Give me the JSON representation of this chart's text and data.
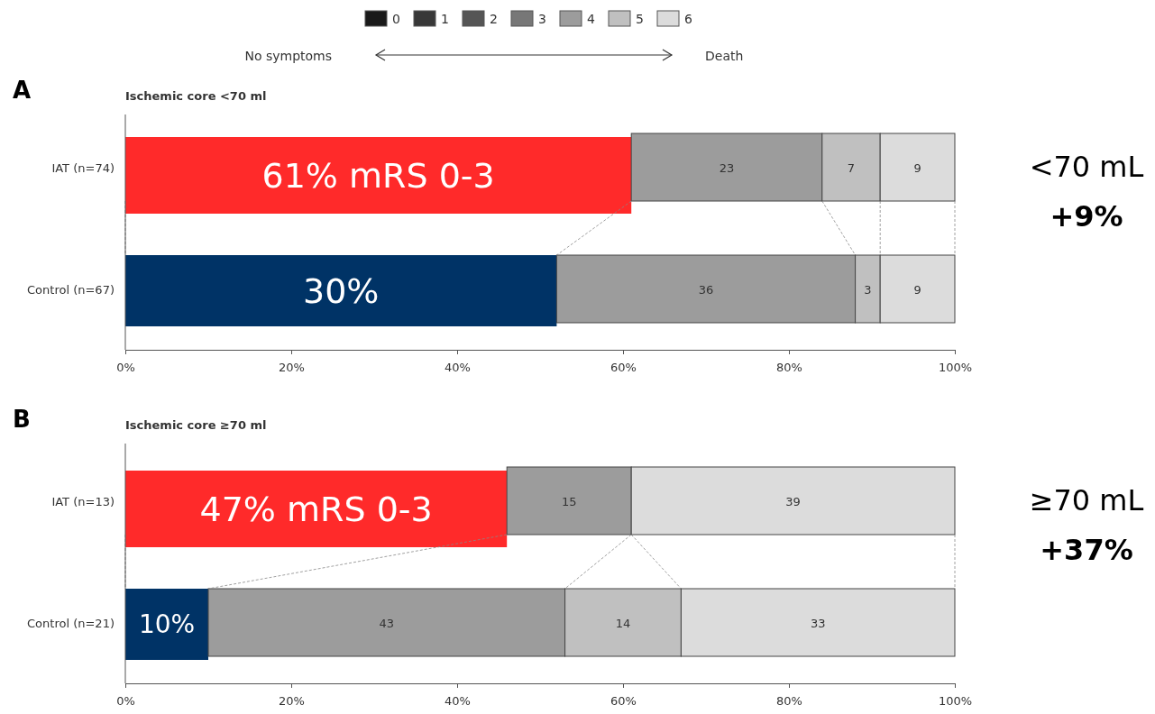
{
  "chart_data": [
    {
      "type": "bar",
      "orientation": "horizontal",
      "stacked": true,
      "title": "Ischemic core <70 ml",
      "categories": [
        "IAT (n=74)",
        "Control (n=67)"
      ],
      "xlim": [
        0,
        100
      ],
      "xticks": [
        {
          "value": 0,
          "label": "0%"
        },
        {
          "value": 20,
          "label": "20%"
        },
        {
          "value": 40,
          "label": "40%"
        },
        {
          "value": 60,
          "label": "60%"
        },
        {
          "value": 80,
          "label": "80%"
        },
        {
          "value": 100,
          "label": "100%"
        }
      ],
      "legend": "top",
      "series": [
        {
          "colors": [
            "#ff2a2a",
            "#003366"
          ],
          "values": [
            61,
            52
          ]
        },
        {
          "name": "0",
          "color": "#1a1a1a",
          "values": [
            null,
            null
          ]
        },
        {
          "name": "1",
          "color": "#383838",
          "values": [
            null,
            null
          ]
        },
        {
          "name": "2",
          "color": "#555555",
          "values": [
            null,
            null
          ]
        },
        {
          "name": "3",
          "color": "#777777",
          "values": [
            null,
            null
          ]
        },
        {
          "name": "4",
          "color": "#9c9c9c",
          "values": [
            23,
            36
          ],
          "value_labels": [
            "23",
            "36"
          ]
        },
        {
          "name": "5",
          "color": "#c0c0c0",
          "values": [
            7,
            3
          ],
          "value_labels": [
            "7",
            "3"
          ]
        },
        {
          "name": "6",
          "color": "#dcdcdc",
          "values": [
            9,
            9
          ],
          "value_labels": [
            "9",
            "9"
          ]
        }
      ],
      "annotations": [
        "A",
        "No symptoms",
        "Death",
        "61% mRS 0-3",
        "30%",
        "<70 mL",
        "+9%"
      ]
    },
    {
      "type": "bar",
      "orientation": "horizontal",
      "stacked": true,
      "title": "Ischemic core ≥70 ml",
      "categories": [
        "IAT (n=13)",
        "Control (n=21)"
      ],
      "xlim": [
        0,
        100
      ],
      "xticks": [
        {
          "value": 0,
          "label": "0%"
        },
        {
          "value": 20,
          "label": "20%"
        },
        {
          "value": 40,
          "label": "40%"
        },
        {
          "value": 60,
          "label": "60%"
        },
        {
          "value": 80,
          "label": "80%"
        },
        {
          "value": 100,
          "label": "100%"
        }
      ],
      "series": [
        {
          "colors": [
            "#ff2a2a",
            "#003366"
          ],
          "values": [
            46,
            10
          ]
        },
        {
          "color": "#9c9c9c",
          "values": [
            15,
            43
          ],
          "value_labels": [
            "15",
            "43"
          ]
        },
        {
          "color": "#c0c0c0",
          "values": [
            0,
            14
          ],
          "value_labels": [
            null,
            "14"
          ]
        },
        {
          "color": "#dcdcdc",
          "values": [
            39,
            33
          ],
          "value_labels": [
            "39",
            "33"
          ]
        }
      ],
      "annotations": [
        "B",
        {
          "text": "47% mRS 0-3",
          "x": 46,
          "y": "IAT (n=13)"
        },
        {
          "text": "10%",
          "x": 10,
          "y": "Control (n=21)"
        },
        "≥70 mL",
        "+37%"
      ]
    }
  ]
}
